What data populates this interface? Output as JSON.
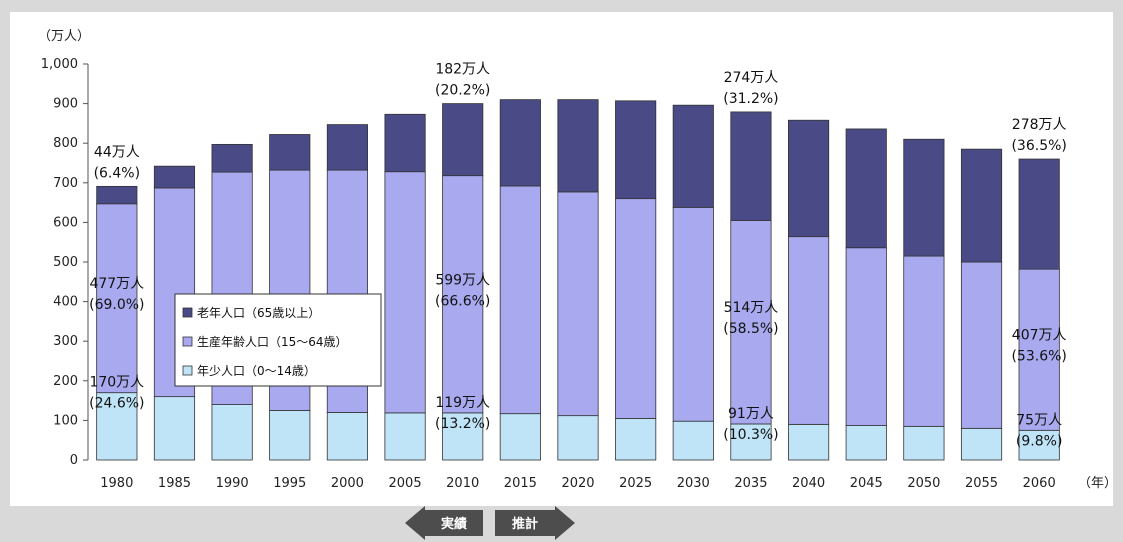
{
  "chart_data": {
    "type": "bar",
    "stacked": true,
    "y_unit_label": "（万人）",
    "x_unit_label": "（年）",
    "categories": [
      "1980",
      "1985",
      "1990",
      "1995",
      "2000",
      "2005",
      "2010",
      "2015",
      "2020",
      "2025",
      "2030",
      "2035",
      "2040",
      "2045",
      "2050",
      "2055",
      "2060"
    ],
    "ylim": [
      0,
      1000
    ],
    "yticks": [
      "0",
      "100",
      "200",
      "300",
      "400",
      "500",
      "600",
      "700",
      "800",
      "900",
      "1,000"
    ],
    "grid": false,
    "series": [
      {
        "name": "年少人口（0～14歳）",
        "color": "#bfe3f7",
        "values": [
          170,
          160,
          140,
          125,
          120,
          119,
          119,
          117,
          112,
          105,
          98,
          91,
          90,
          87,
          85,
          80,
          75
        ]
      },
      {
        "name": "生産年齢人口（15～64歳）",
        "color": "#a9a9f0",
        "values": [
          477,
          527,
          587,
          607,
          612,
          609,
          599,
          575,
          565,
          555,
          540,
          514,
          474,
          449,
          430,
          420,
          407
        ]
      },
      {
        "name": "老年人口（65歳以上）",
        "color": "#4a4a86",
        "values": [
          44,
          55,
          70,
          90,
          115,
          145,
          182,
          218,
          233,
          247,
          258,
          274,
          294,
          300,
          295,
          285,
          278
        ]
      }
    ],
    "legend_position": "left-middle",
    "legend_order": [
      2,
      1,
      0
    ],
    "annotations": [
      {
        "category": "1980",
        "series": 2,
        "lines": [
          "44万人",
          "(6.4%)"
        ]
      },
      {
        "category": "1980",
        "series": 1,
        "lines": [
          "477万人",
          "(69.0%)"
        ]
      },
      {
        "category": "1980",
        "series": 0,
        "lines": [
          "170万人",
          "(24.6%)"
        ]
      },
      {
        "category": "2010",
        "series": 2,
        "lines": [
          "182万人",
          "(20.2%)"
        ]
      },
      {
        "category": "2010",
        "series": 1,
        "lines": [
          "599万人",
          "(66.6%)"
        ]
      },
      {
        "category": "2010",
        "series": 0,
        "lines": [
          "119万人",
          "(13.2%)"
        ]
      },
      {
        "category": "2035",
        "series": 2,
        "lines": [
          "274万人",
          "(31.2%)"
        ]
      },
      {
        "category": "2035",
        "series": 1,
        "lines": [
          "514万人",
          "(58.5%)"
        ]
      },
      {
        "category": "2035",
        "series": 0,
        "lines": [
          "91万人",
          "(10.3%)"
        ]
      },
      {
        "category": "2060",
        "series": 2,
        "lines": [
          "278万人",
          "(36.5%)"
        ]
      },
      {
        "category": "2060",
        "series": 1,
        "lines": [
          "407万人",
          "(53.6%)"
        ]
      },
      {
        "category": "2060",
        "series": 0,
        "lines": [
          "75万人",
          "(9.8%)"
        ]
      }
    ],
    "period_labels": {
      "actual": "実績",
      "projected": "推計"
    }
  }
}
